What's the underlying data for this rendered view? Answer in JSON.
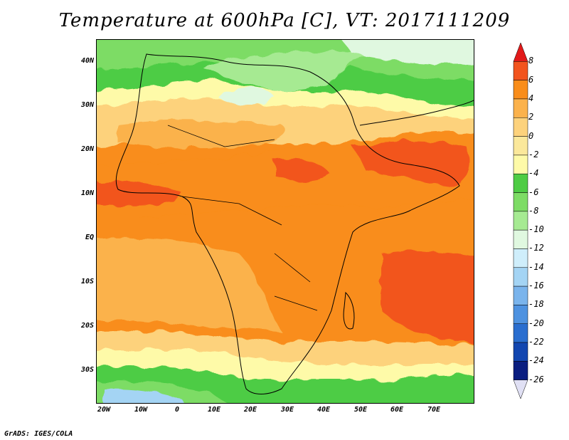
{
  "title": "Temperature at 600hPa [C], VT: 2017111209",
  "credit": "GrADS: IGES/COLA",
  "map": {
    "lat_labels": [
      "40N",
      "30N",
      "20N",
      "10N",
      "EQ",
      "10S",
      "20S",
      "30S"
    ],
    "lon_labels": [
      "20W",
      "10W",
      "0",
      "10E",
      "20E",
      "30E",
      "40E",
      "50E",
      "60E",
      "70E"
    ],
    "lat_range": [
      -37,
      45
    ],
    "lon_range": [
      -23,
      80
    ]
  },
  "colorbar": {
    "labels": [
      "8",
      "6",
      "4",
      "2",
      "0",
      "-2",
      "-4",
      "-6",
      "-8",
      "-10",
      "-12",
      "-14",
      "-16",
      "-18",
      "-20",
      "-22",
      "-24",
      "-26"
    ],
    "colors": [
      "#e21a1a",
      "#f2541e",
      "#f98d1a",
      "#fbb24c",
      "#fdd27c",
      "#fbe89b",
      "#fefaa8",
      "#4ecc44",
      "#7ddc65",
      "#a6ea92",
      "#e0f8e0",
      "#cfeefb",
      "#a4d4f4",
      "#7ab4ec",
      "#4e92e0",
      "#2a6ecf",
      "#1246b0",
      "#0a1e80",
      "#e0e0f4"
    ]
  }
}
